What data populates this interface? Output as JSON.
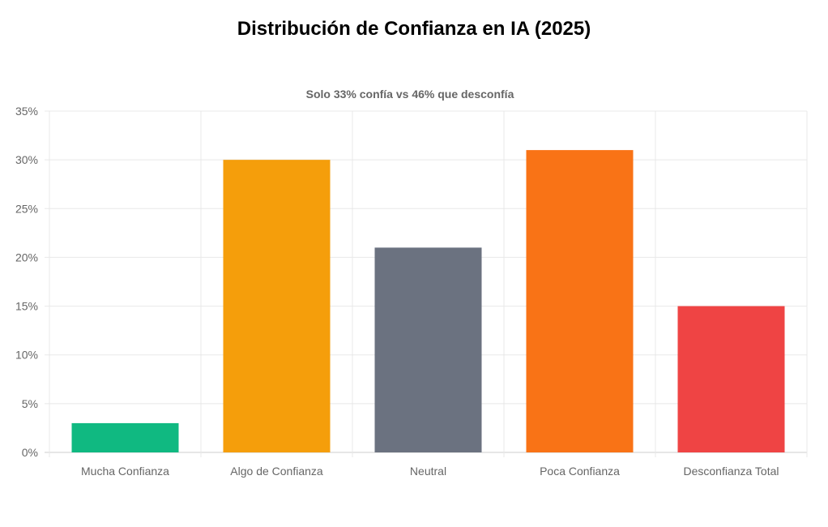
{
  "title": "Distribución de Confianza en IA (2025)",
  "chart_data": {
    "type": "bar",
    "title": "Solo 33% confía vs 46% que desconfía",
    "xlabel": "",
    "ylabel": "",
    "categories": [
      "Mucha Confianza",
      "Algo de Confianza",
      "Neutral",
      "Poca Confianza",
      "Desconfianza Total"
    ],
    "values": [
      3,
      30,
      21,
      31,
      15
    ],
    "colors": [
      "#10b981",
      "#f59e0b",
      "#6b7280",
      "#f97316",
      "#ef4444"
    ],
    "ylim": [
      0,
      35
    ],
    "yticks": [
      0,
      5,
      10,
      15,
      20,
      25,
      30,
      35
    ],
    "ytick_format": "%",
    "grid": true,
    "legend": "none"
  }
}
